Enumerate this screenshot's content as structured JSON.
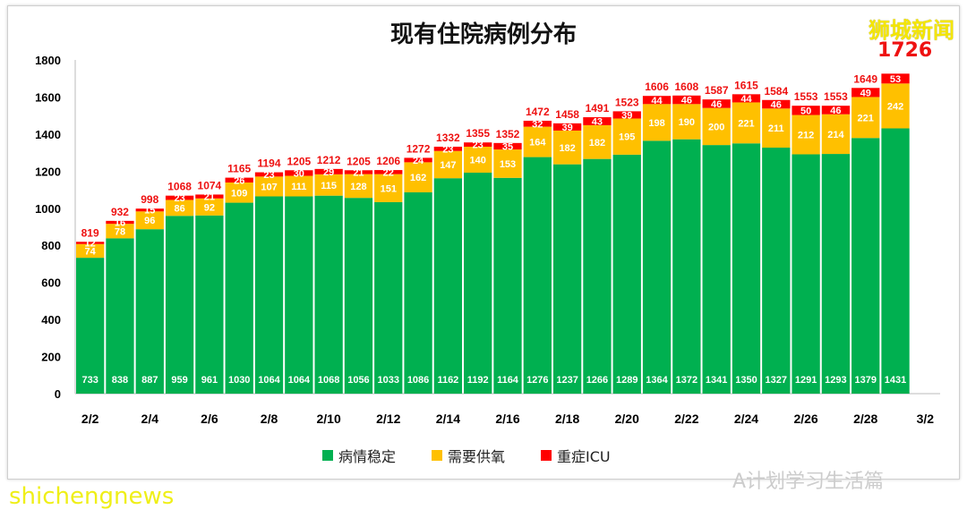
{
  "brand": "狮城新闻",
  "watermark": "shichengnews",
  "watermark2": "A计划学习生活篇",
  "chart_data": {
    "type": "bar",
    "stacked": true,
    "title": "现有住院病例分布",
    "highlight_total": "1726",
    "ylim": [
      0,
      1800
    ],
    "yticks": [
      0,
      200,
      400,
      600,
      800,
      1000,
      1200,
      1400,
      1600,
      1800
    ],
    "categories": [
      "2/2",
      "2/3",
      "2/4",
      "2/5",
      "2/6",
      "2/7",
      "2/8",
      "2/9",
      "2/10",
      "2/11",
      "2/12",
      "2/13",
      "2/14",
      "2/15",
      "2/16",
      "2/17",
      "2/18",
      "2/19",
      "2/20",
      "2/21",
      "2/22",
      "2/23",
      "2/24",
      "2/25",
      "2/26",
      "2/27",
      "2/28",
      "3/1"
    ],
    "xtick_labels": [
      "2/2",
      "2/4",
      "2/6",
      "2/8",
      "2/10",
      "2/12",
      "2/14",
      "2/16",
      "2/18",
      "2/20",
      "2/22",
      "2/24",
      "2/26",
      "2/28",
      "3/2"
    ],
    "series": [
      {
        "name": "病情稳定",
        "color": "#00b050",
        "values": [
          733,
          838,
          887,
          959,
          961,
          1030,
          1064,
          1064,
          1068,
          1056,
          1033,
          1086,
          1162,
          1192,
          1164,
          1276,
          1237,
          1266,
          1289,
          1364,
          1372,
          1341,
          1350,
          1327,
          1291,
          1293,
          1379,
          1431
        ]
      },
      {
        "name": "需要供氧",
        "color": "#ffc000",
        "values": [
          74,
          78,
          96,
          86,
          92,
          109,
          107,
          111,
          115,
          128,
          151,
          162,
          147,
          140,
          153,
          164,
          182,
          182,
          195,
          198,
          190,
          200,
          221,
          211,
          212,
          214,
          221,
          242
        ]
      },
      {
        "name": "重症ICU",
        "color": "#ff0000",
        "values": [
          12,
          16,
          15,
          23,
          21,
          26,
          23,
          30,
          29,
          21,
          22,
          24,
          23,
          23,
          35,
          32,
          39,
          43,
          39,
          44,
          46,
          46,
          44,
          46,
          50,
          46,
          49,
          53
        ]
      }
    ],
    "totals": [
      819,
      932,
      998,
      1068,
      1074,
      1165,
      1194,
      1205,
      1212,
      1205,
      1206,
      1272,
      1332,
      1355,
      1352,
      1472,
      1458,
      1491,
      1523,
      1606,
      1608,
      1587,
      1615,
      1584,
      1553,
      1553,
      1649,
      1726
    ],
    "legend": "bottom",
    "grid": false
  }
}
